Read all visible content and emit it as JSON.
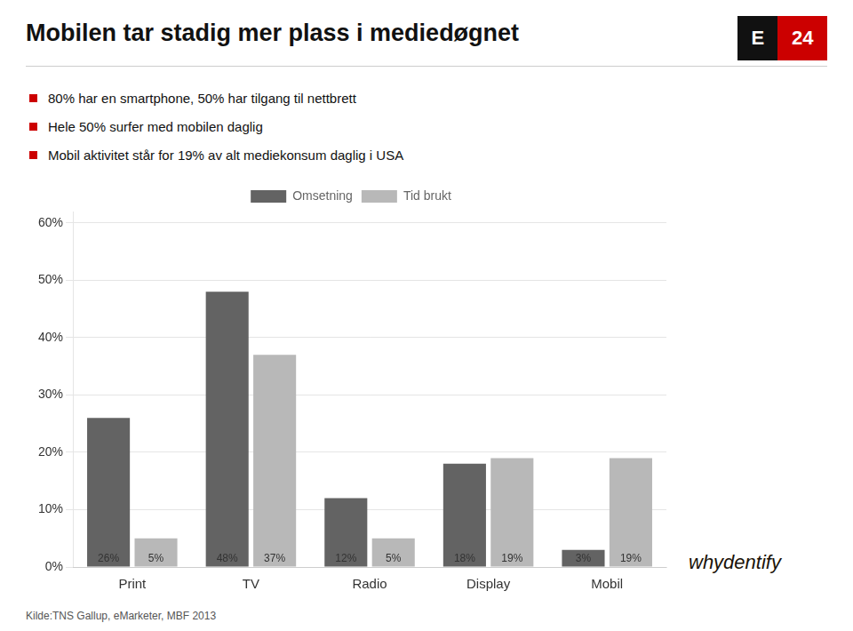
{
  "chart_data": {
    "type": "bar",
    "title": "Mobilen tar stadig mer plass i mediedøgnet",
    "subtitle": [
      "80% har en smartphone, 50% har tilgang til nettbrett",
      "Hele 50% surfer med mobilen daglig",
      "Mobil aktivitet står for 19% av alt mediekonsum daglig i USA"
    ],
    "annotations": [
      "Kilde:TNS Gallup, eMarketer, MBF 2013",
      "E24",
      "whydentify"
    ],
    "categories": [
      "Print",
      "TV",
      "Radio",
      "Display",
      "Mobil"
    ],
    "series": [
      {
        "name": "Omsetning",
        "color": "#636363",
        "values": [
          0.26,
          0.48,
          0.12,
          0.18,
          0.03
        ],
        "value_labels": [
          "26%",
          "48%",
          "12%",
          "18%",
          "3%"
        ]
      },
      {
        "name": "Tid brukt",
        "color": "#b8b8b8",
        "values": [
          0.05,
          0.37,
          0.05,
          0.19,
          0.19
        ],
        "value_labels": [
          "5%",
          "37%",
          "5%",
          "19%",
          "19%"
        ]
      }
    ],
    "ylim": [
      0,
      0.62
    ],
    "yticks": [
      {
        "value": 0,
        "label": "0%"
      },
      {
        "value": 0.1,
        "label": "10%"
      },
      {
        "value": 0.2,
        "label": "20%"
      },
      {
        "value": 0.3,
        "label": "30%"
      },
      {
        "value": 0.4,
        "label": "40%"
      },
      {
        "value": 0.5,
        "label": "50%"
      },
      {
        "value": 0.6,
        "label": "60%"
      }
    ],
    "grid": true,
    "legend": "top",
    "data_labels": true
  }
}
